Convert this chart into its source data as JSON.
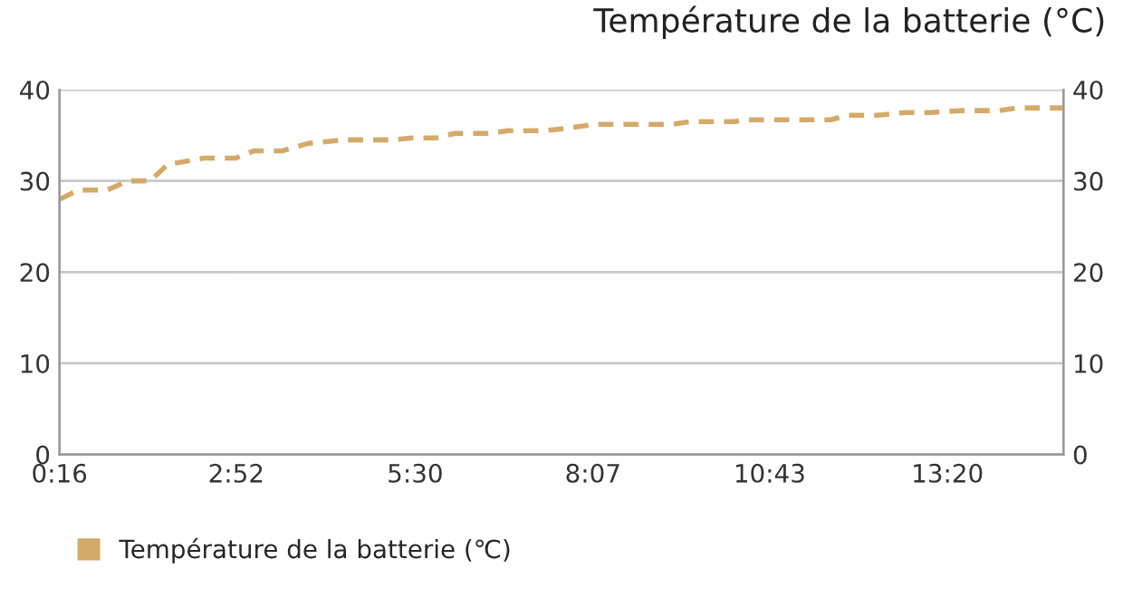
{
  "chart_data": {
    "type": "line",
    "title": "Température de la batterie (°C)",
    "x": [
      0.27,
      0.55,
      0.97,
      1.28,
      1.6,
      1.86,
      2.39,
      2.86,
      3.13,
      3.55,
      3.92,
      4.44,
      5.18,
      5.45,
      5.81,
      6.08,
      6.55,
      6.87,
      7.4,
      7.77,
      8.13,
      9.29,
      9.56,
      10.19,
      10.4,
      11.61,
      11.88,
      12.3,
      12.72,
      13.09,
      13.51,
      14.09,
      14.36,
      15.04
    ],
    "series": [
      {
        "name": "Température de la batterie (℃)",
        "color": "#d4aa6a",
        "values": [
          28.0,
          29.0,
          29.0,
          30.0,
          30.0,
          31.8,
          32.5,
          32.5,
          33.3,
          33.3,
          34.1,
          34.5,
          34.5,
          34.7,
          34.7,
          35.2,
          35.2,
          35.5,
          35.5,
          35.8,
          36.2,
          36.2,
          36.5,
          36.5,
          36.7,
          36.7,
          37.2,
          37.2,
          37.5,
          37.5,
          37.7,
          37.7,
          38.0,
          38.0
        ]
      }
    ],
    "xlim": [
      0.267,
      15.04
    ],
    "xticks": [
      {
        "value": 0.267,
        "label": "0:16"
      },
      {
        "value": 2.867,
        "label": "2:52"
      },
      {
        "value": 5.5,
        "label": "5:30"
      },
      {
        "value": 8.117,
        "label": "8:07"
      },
      {
        "value": 10.717,
        "label": "10:43"
      },
      {
        "value": 13.333,
        "label": "13:20"
      }
    ],
    "ylim": [
      0,
      40
    ],
    "yticks": [
      0,
      10,
      20,
      30,
      40
    ],
    "y2lim": [
      0,
      40
    ],
    "y2ticks": [
      0,
      10,
      20,
      30,
      40
    ],
    "grid": "y",
    "legend": "bottom left",
    "line_style": "dashed",
    "marker": "none"
  }
}
